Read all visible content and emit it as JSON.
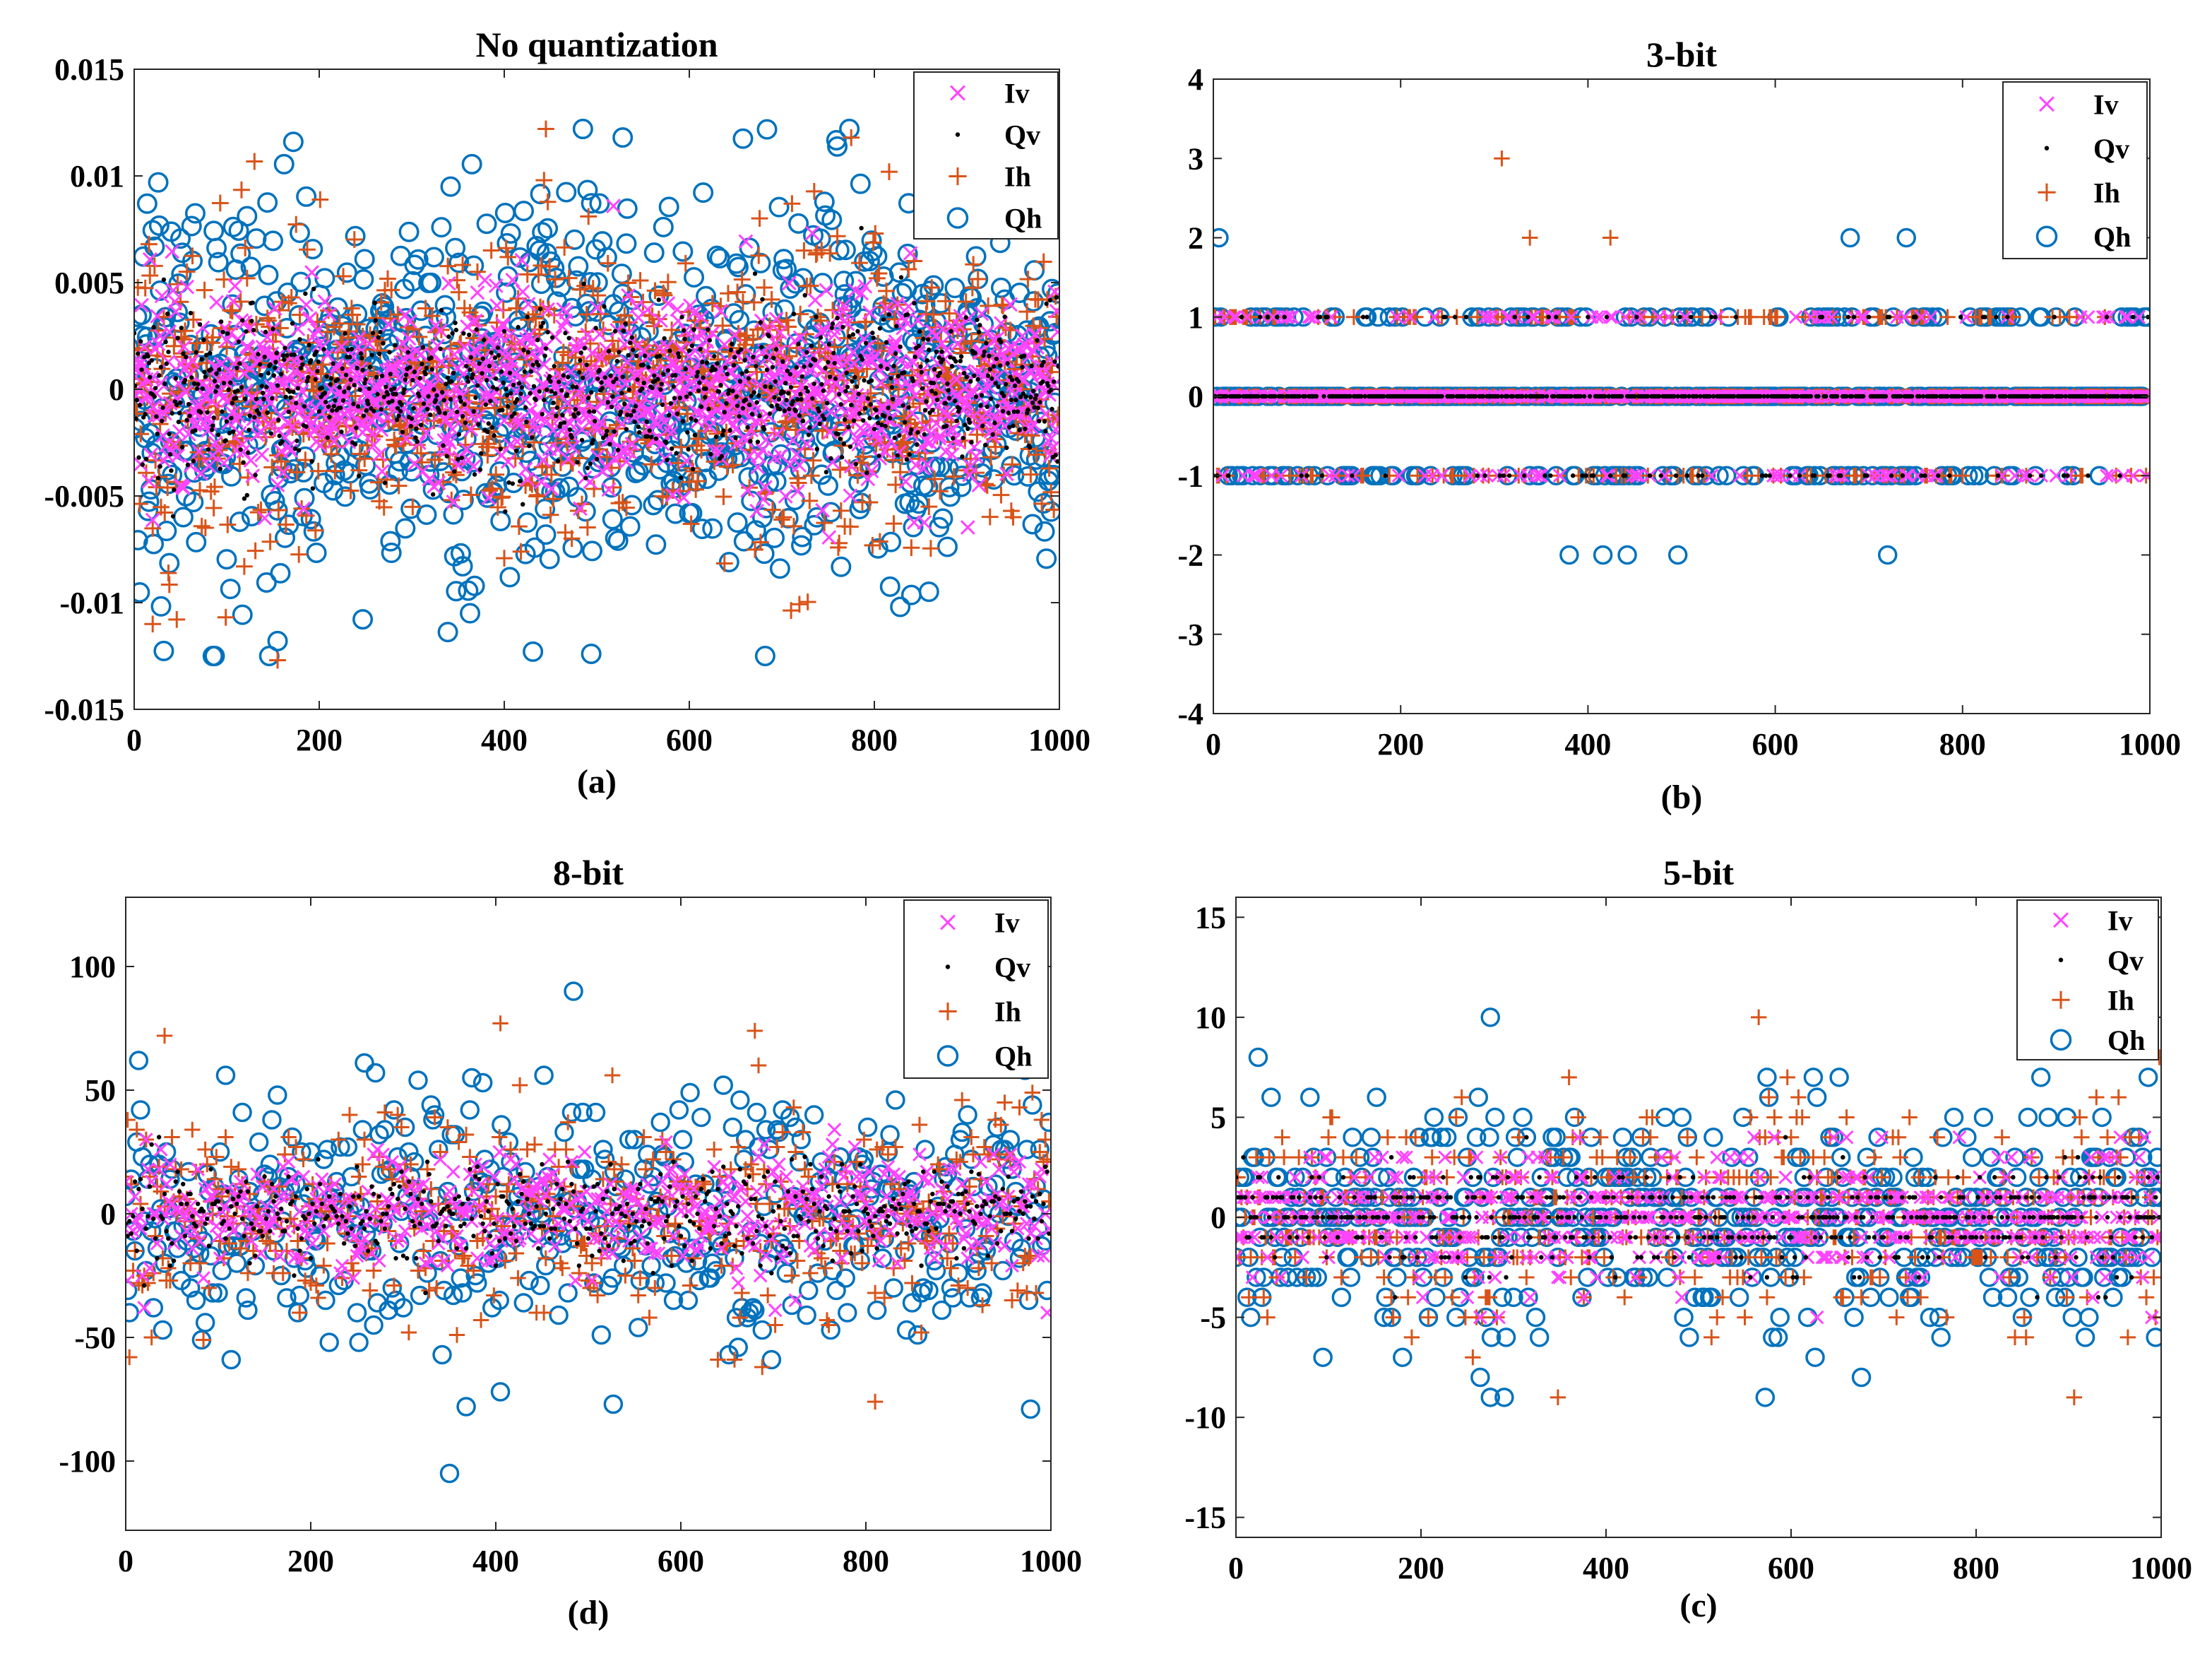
{
  "figure": {
    "series_styles": [
      {
        "name": "Iv",
        "marker": "x",
        "color": "#ff44ff"
      },
      {
        "name": "Qv",
        "marker": "dot",
        "color": "#000000"
      },
      {
        "name": "Ih",
        "marker": "plus",
        "color": "#d95319"
      },
      {
        "name": "Qh",
        "marker": "circle",
        "color": "#0072bd"
      }
    ]
  },
  "chart_data": [
    {
      "id": "a",
      "type": "scatter",
      "title": "No quantization",
      "caption": "(a)",
      "xlabel": "",
      "ylabel": "",
      "xlim": [
        0,
        1000
      ],
      "ylim": [
        -0.015,
        0.015
      ],
      "x_ticks": [
        0,
        200,
        400,
        600,
        800,
        1000
      ],
      "x_tick_labels": [
        "0",
        "200",
        "400",
        "600",
        "800",
        "1000"
      ],
      "y_ticks": [
        -0.015,
        -0.01,
        -0.005,
        0,
        0.005,
        0.01,
        0.015
      ],
      "y_tick_labels": [
        "-0.015",
        "-0.01",
        "-0.005",
        "0",
        "0.005",
        "0.01",
        "0.015"
      ],
      "grid": false,
      "legend_position": "top-right",
      "quantized": false,
      "series_std": [
        0.0022,
        0.0018,
        0.0034,
        0.0042
      ],
      "extreme_points": [
        {
          "series": "Qh",
          "x": 528,
          "y": 0.0118
        },
        {
          "series": "Qh",
          "x": 494,
          "y": -0.0124
        },
        {
          "series": "Qh",
          "x": 155,
          "y": -0.0118
        },
        {
          "series": "Qh",
          "x": 828,
          "y": -0.0102
        },
        {
          "series": "Ih",
          "x": 155,
          "y": -0.0127
        },
        {
          "series": "Ih",
          "x": 20,
          "y": -0.011
        },
        {
          "series": "Qh",
          "x": 14,
          "y": 0.0087
        }
      ],
      "series": [
        {
          "name": "Iv",
          "n": 1000
        },
        {
          "name": "Qv",
          "n": 1000
        },
        {
          "name": "Ih",
          "n": 1000
        },
        {
          "name": "Qh",
          "n": 1000
        }
      ],
      "legend": [
        "Iv",
        "Qv",
        "Ih",
        "Qh"
      ]
    },
    {
      "id": "b",
      "type": "scatter",
      "title": "3-bit",
      "caption": "(b)",
      "xlabel": "",
      "ylabel": "",
      "xlim": [
        0,
        1000
      ],
      "ylim": [
        -4,
        4
      ],
      "x_ticks": [
        0,
        200,
        400,
        600,
        800,
        1000
      ],
      "x_tick_labels": [
        "0",
        "200",
        "400",
        "600",
        "800",
        "1000"
      ],
      "y_ticks": [
        -4,
        -3,
        -2,
        -1,
        0,
        1,
        2,
        3,
        4
      ],
      "y_tick_labels": [
        "-4",
        "-3",
        "-2",
        "-1",
        "0",
        "1",
        "2",
        "3",
        "4"
      ],
      "grid": false,
      "legend_position": "top-right",
      "quantized": true,
      "series_std": [
        0.45,
        0.4,
        0.55,
        0.6
      ],
      "extreme_points": [
        {
          "series": "Ih",
          "x": 308,
          "y": 3
        }
      ],
      "series": [
        {
          "name": "Iv",
          "n": 1000
        },
        {
          "name": "Qv",
          "n": 1000
        },
        {
          "name": "Ih",
          "n": 1000
        },
        {
          "name": "Qh",
          "n": 1000
        }
      ],
      "legend": [
        "Iv",
        "Qv",
        "Ih",
        "Qh"
      ]
    },
    {
      "id": "d",
      "type": "scatter",
      "title": "8-bit",
      "caption": "(d)",
      "xlabel": "",
      "ylabel": "",
      "xlim": [
        0,
        1000
      ],
      "ylim": [
        -128,
        128
      ],
      "x_ticks": [
        0,
        200,
        400,
        600,
        800,
        1000
      ],
      "x_tick_labels": [
        "0",
        "200",
        "400",
        "600",
        "800",
        "1000"
      ],
      "y_ticks": [
        -100,
        -50,
        0,
        50,
        100
      ],
      "y_tick_labels": [
        "-100",
        "-50",
        "0",
        "50",
        "100"
      ],
      "grid": false,
      "legend_position": "top-right",
      "quantized": true,
      "series_std": [
        12,
        10,
        20,
        26
      ],
      "extreme_points": [
        {
          "series": "Qh",
          "x": 484,
          "y": 90
        },
        {
          "series": "Ih",
          "x": 405,
          "y": 77
        },
        {
          "series": "Ih",
          "x": 810,
          "y": -76
        },
        {
          "series": "Qh",
          "x": 527,
          "y": -77
        },
        {
          "series": "Qh",
          "x": 405,
          "y": -72
        },
        {
          "series": "Ih",
          "x": 42,
          "y": 72
        }
      ],
      "series": [
        {
          "name": "Iv",
          "n": 1000
        },
        {
          "name": "Qv",
          "n": 1000
        },
        {
          "name": "Ih",
          "n": 1000
        },
        {
          "name": "Qh",
          "n": 1000
        }
      ],
      "legend": [
        "Iv",
        "Qv",
        "Ih",
        "Qh"
      ]
    },
    {
      "id": "c",
      "type": "scatter",
      "title": "5-bit",
      "caption": "(c)",
      "xlabel": "",
      "ylabel": "",
      "xlim": [
        0,
        1000
      ],
      "ylim": [
        -16,
        16
      ],
      "x_ticks": [
        0,
        200,
        400,
        600,
        800,
        1000
      ],
      "x_tick_labels": [
        "0",
        "200",
        "400",
        "600",
        "800",
        "1000"
      ],
      "y_ticks": [
        -15,
        -10,
        -5,
        0,
        5,
        10,
        15
      ],
      "y_tick_labels": [
        "-15",
        "-10",
        "-5",
        "0",
        "5",
        "10",
        "15"
      ],
      "grid": false,
      "legend_position": "top-right",
      "quantized": true,
      "series_std": [
        1.6,
        1.3,
        2.6,
        3.0
      ],
      "extreme_points": [
        {
          "series": "Qh",
          "x": 275,
          "y": 10
        },
        {
          "series": "Ih",
          "x": 565,
          "y": 10
        },
        {
          "series": "Qh",
          "x": 275,
          "y": -9
        },
        {
          "series": "Qh",
          "x": 290,
          "y": -9
        },
        {
          "series": "Ih",
          "x": 348,
          "y": -9
        },
        {
          "series": "Ih",
          "x": 906,
          "y": -9
        }
      ],
      "series": [
        {
          "name": "Iv",
          "n": 1000
        },
        {
          "name": "Qv",
          "n": 1000
        },
        {
          "name": "Ih",
          "n": 1000
        },
        {
          "name": "Qh",
          "n": 1000
        }
      ],
      "legend": [
        "Iv",
        "Qv",
        "Ih",
        "Qh"
      ]
    }
  ]
}
